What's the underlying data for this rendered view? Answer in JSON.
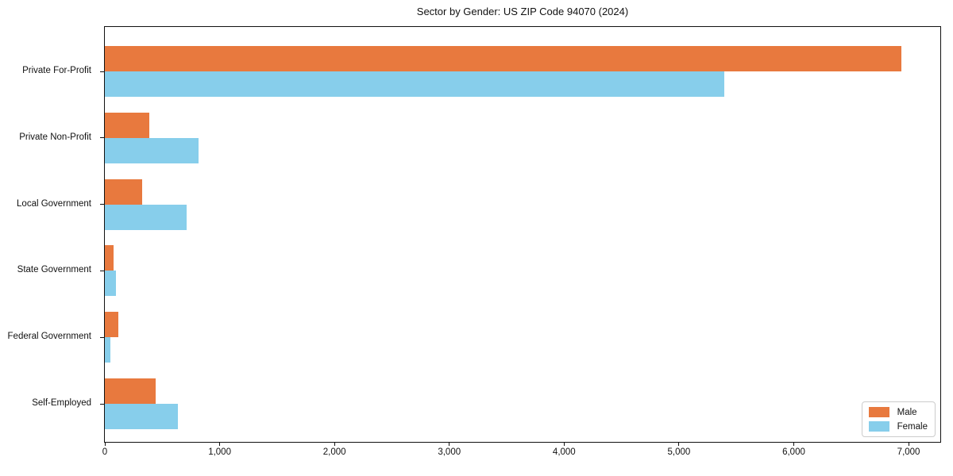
{
  "title": "Sector by Gender: US ZIP Code 94070 (2024)",
  "chart_data": {
    "type": "bar",
    "orientation": "horizontal",
    "title": "Sector by Gender: US ZIP Code 94070 (2024)",
    "xlabel": "",
    "ylabel": "",
    "categories": [
      "Private For-Profit",
      "Private Non-Profit",
      "Local Government",
      "State Government",
      "Federal Government",
      "Self-Employed"
    ],
    "series": [
      {
        "name": "Male",
        "color": "#E8793E",
        "values": [
          6940,
          390,
          325,
          75,
          120,
          440
        ]
      },
      {
        "name": "Female",
        "color": "#87CEEB",
        "values": [
          5395,
          815,
          710,
          100,
          50,
          635
        ]
      }
    ],
    "xlim": [
      0,
      7290
    ],
    "x_tick_values": [
      0,
      1000,
      2000,
      3000,
      4000,
      5000,
      6000,
      7000
    ],
    "x_tick_labels": [
      "0",
      "1,000",
      "2,000",
      "3,000",
      "4,000",
      "5,000",
      "6,000",
      "7,000"
    ],
    "grid": false,
    "legend_position": "lower right"
  },
  "legend": {
    "items": [
      {
        "label": "Male",
        "color": "#E8793E"
      },
      {
        "label": "Female",
        "color": "#87CEEB"
      }
    ]
  }
}
